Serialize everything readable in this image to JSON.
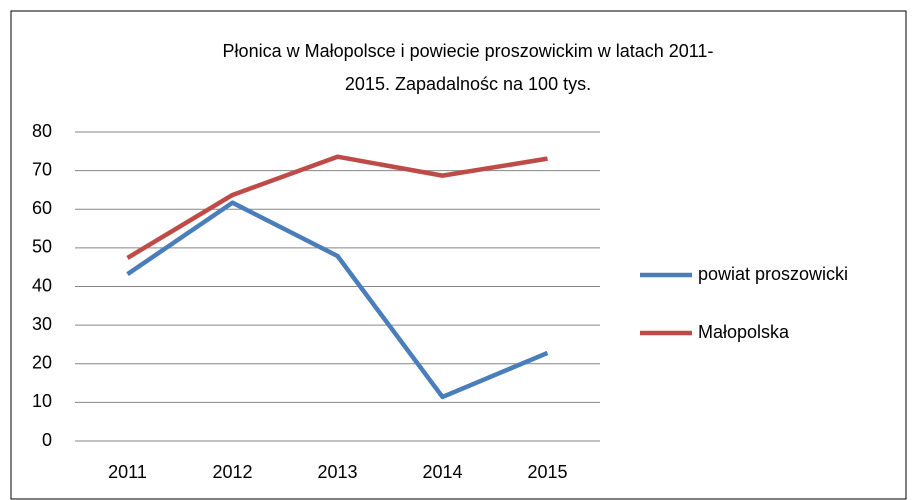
{
  "chart_data": {
    "type": "line",
    "title": [
      "Płonica w Małopolsce i powiecie proszowickim w latach 2011-",
      "2015. Zapadalnośc na 100 tys."
    ],
    "categories": [
      "2011",
      "2012",
      "2013",
      "2014",
      "2015"
    ],
    "series": [
      {
        "name": "powiat proszowicki",
        "color": "#4a7ebb",
        "values": [
          43.2,
          61.7,
          47.9,
          11.4,
          22.8
        ]
      },
      {
        "name": "Małopolska",
        "color": "#be4b48",
        "values": [
          47.4,
          63.7,
          73.6,
          68.7,
          73.1
        ]
      }
    ],
    "ylim": [
      0,
      80
    ],
    "yticks": [
      0,
      10,
      20,
      30,
      40,
      50,
      60,
      70,
      80
    ],
    "grid": true,
    "legend": "right"
  }
}
